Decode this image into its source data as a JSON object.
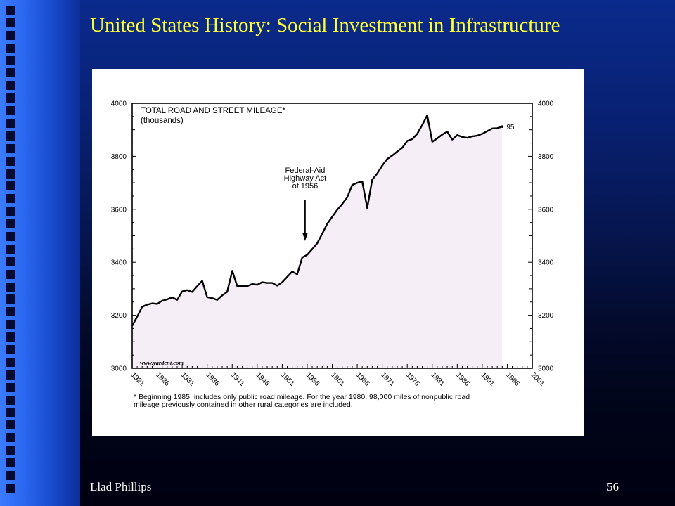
{
  "slide": {
    "title": "United States History: Social Investment in Infrastructure",
    "footer_author": "Llad Phillips",
    "page_number": "56",
    "title_color": "#ffff33"
  },
  "chart_data": {
    "type": "area",
    "title": "TOTAL ROAD AND STREET MILEAGE*",
    "subtitle": "(thousands)",
    "xlabel": "",
    "ylabel": "",
    "xlim": [
      1921,
      2001
    ],
    "ylim": [
      3000,
      4000
    ],
    "y_ticks": [
      3000,
      3200,
      3400,
      3600,
      3800,
      4000
    ],
    "y_tick_labels": [
      "3000",
      "3200",
      "3400",
      "3600",
      "3800",
      "4000"
    ],
    "x_ticks": [
      1921,
      1926,
      1931,
      1936,
      1941,
      1946,
      1951,
      1956,
      1961,
      1966,
      1971,
      1976,
      1981,
      1986,
      1991,
      1996,
      2001
    ],
    "x_tick_labels": [
      "1921",
      "1926",
      "1931",
      "1936",
      "1941",
      "1946",
      "1951",
      "1956",
      "1961",
      "1966",
      "1971",
      "1976",
      "1981",
      "1986",
      "1991",
      "1996",
      "2001"
    ],
    "series": [
      {
        "values": [
          [
            1921,
            3160
          ],
          [
            1922,
            3195
          ],
          [
            1923,
            3232
          ],
          [
            1924,
            3240
          ],
          [
            1925,
            3245
          ],
          [
            1926,
            3243
          ],
          [
            1927,
            3255
          ],
          [
            1928,
            3260
          ],
          [
            1929,
            3268
          ],
          [
            1930,
            3258
          ],
          [
            1931,
            3290
          ],
          [
            1932,
            3295
          ],
          [
            1933,
            3288
          ],
          [
            1934,
            3310
          ],
          [
            1935,
            3330
          ],
          [
            1936,
            3268
          ],
          [
            1937,
            3265
          ],
          [
            1938,
            3258
          ],
          [
            1939,
            3275
          ],
          [
            1940,
            3288
          ],
          [
            1941,
            3368
          ],
          [
            1942,
            3310
          ],
          [
            1943,
            3310
          ],
          [
            1944,
            3310
          ],
          [
            1945,
            3318
          ],
          [
            1946,
            3315
          ],
          [
            1947,
            3325
          ],
          [
            1948,
            3322
          ],
          [
            1949,
            3322
          ],
          [
            1950,
            3312
          ],
          [
            1951,
            3325
          ],
          [
            1952,
            3345
          ],
          [
            1953,
            3365
          ],
          [
            1954,
            3355
          ],
          [
            1955,
            3418
          ],
          [
            1956,
            3428
          ],
          [
            1957,
            3450
          ],
          [
            1958,
            3472
          ],
          [
            1959,
            3508
          ],
          [
            1960,
            3545
          ],
          [
            1961,
            3572
          ],
          [
            1962,
            3598
          ],
          [
            1963,
            3620
          ],
          [
            1964,
            3645
          ],
          [
            1965,
            3692
          ],
          [
            1966,
            3700
          ],
          [
            1967,
            3705
          ],
          [
            1968,
            3605
          ],
          [
            1969,
            3712
          ],
          [
            1970,
            3735
          ],
          [
            1971,
            3765
          ],
          [
            1972,
            3790
          ],
          [
            1973,
            3803
          ],
          [
            1974,
            3818
          ],
          [
            1975,
            3832
          ],
          [
            1976,
            3858
          ],
          [
            1977,
            3865
          ],
          [
            1978,
            3885
          ],
          [
            1979,
            3918
          ],
          [
            1980,
            3955
          ],
          [
            1981,
            3855
          ],
          [
            1982,
            3868
          ],
          [
            1983,
            3882
          ],
          [
            1984,
            3893
          ],
          [
            1985,
            3863
          ],
          [
            1986,
            3880
          ],
          [
            1987,
            3873
          ],
          [
            1988,
            3870
          ],
          [
            1989,
            3875
          ],
          [
            1990,
            3878
          ],
          [
            1991,
            3885
          ],
          [
            1992,
            3895
          ],
          [
            1993,
            3905
          ],
          [
            1994,
            3906
          ],
          [
            1995,
            3912
          ]
        ],
        "color": "#000000",
        "fill": "#f6eef6"
      }
    ],
    "annotations": [
      {
        "text_lines": [
          "Federal-Aid",
          "Highway Act",
          "of 1956"
        ],
        "x": 1956,
        "y": 3480,
        "type": "arrow"
      },
      {
        "text": "95",
        "x": 1995,
        "y": 3912,
        "type": "end-label"
      }
    ],
    "watermark": "www.yardeni.com",
    "footnote_lines": [
      "* Beginning 1985, includes only public road mileage. For the year 1980, 98,000 miles of nonpublic road",
      "  mileage previously contained in other rural categories are included."
    ],
    "grid": false
  }
}
